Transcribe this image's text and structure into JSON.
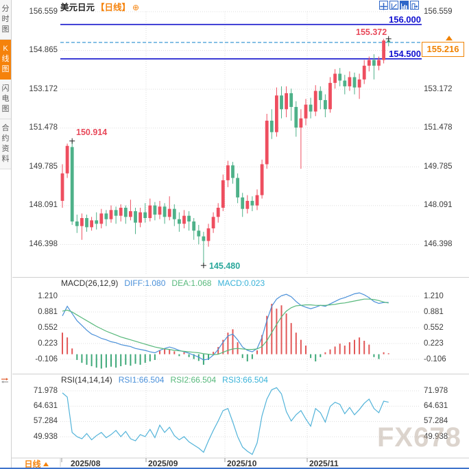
{
  "app": {
    "title": "美元日元",
    "period_tag": "【日线】",
    "footer_period": "日线",
    "watermark": "FX678"
  },
  "sidebar": {
    "tabs": [
      {
        "label": "分时图",
        "active": false
      },
      {
        "label": "K线图",
        "active": true
      },
      {
        "label": "闪电图",
        "active": false
      },
      {
        "label": "合约资料",
        "active": false
      }
    ]
  },
  "toolbar": {
    "icons": [
      "crosshair",
      "axis-scale",
      "indicator-chart",
      "exit"
    ]
  },
  "colors": {
    "up": "#ee4e5f",
    "down": "#4eb189",
    "hist_up": "#e25757",
    "hist_down": "#3da878",
    "diff": "#4a90d9",
    "dea": "#57b87b",
    "rsi_line": "#52b3d9",
    "hline": "#1212cc",
    "dashed": "#3d9ad6",
    "grid": "#dcdcdc",
    "separator": "#cfcfcf",
    "accent_orange": "#f5820b",
    "marker_red": "#e8495a",
    "marker_teal": "#2aa79b"
  },
  "chart_data": [
    {
      "type": "candlestick",
      "title": "美元日元 日线",
      "x_ticks": [
        "2025/08",
        "2025/09",
        "2025/10",
        "2025/11"
      ],
      "y_ticks": [
        156.559,
        154.865,
        153.172,
        151.478,
        149.785,
        148.091,
        146.398
      ],
      "ylim": [
        146.398,
        156.559
      ],
      "hlines": [
        {
          "value": 156.0,
          "label": "156.000"
        },
        {
          "value": 154.5,
          "label": "154.500"
        }
      ],
      "current_price": {
        "value": 155.216,
        "label": "155.216"
      },
      "markers": [
        {
          "label": "150.914",
          "value": 150.914,
          "candle": 2,
          "anchor": "high"
        },
        {
          "label": "145.480",
          "value": 145.48,
          "candle": 29,
          "anchor": "low"
        },
        {
          "label": "155.372",
          "value": 155.372,
          "candle": 67,
          "anchor": "high"
        }
      ],
      "candles_ohlc": [
        [
          148.3,
          149.9,
          148.0,
          149.5
        ],
        [
          149.5,
          150.8,
          149.3,
          150.7
        ],
        [
          150.65,
          150.914,
          147.25,
          147.4
        ],
        [
          147.4,
          147.7,
          146.9,
          147.2
        ],
        [
          147.2,
          147.75,
          146.6,
          147.55
        ],
        [
          147.55,
          147.7,
          146.95,
          147.15
        ],
        [
          147.15,
          147.6,
          147.0,
          147.45
        ],
        [
          147.45,
          147.8,
          147.05,
          147.3
        ],
        [
          147.3,
          147.95,
          147.1,
          147.75
        ],
        [
          147.75,
          147.9,
          147.2,
          147.5
        ],
        [
          147.5,
          148.1,
          147.35,
          147.9
        ],
        [
          147.9,
          148.05,
          147.3,
          147.65
        ],
        [
          147.65,
          148.15,
          147.4,
          148.0
        ],
        [
          148.0,
          148.1,
          147.3,
          147.6
        ],
        [
          147.6,
          148.35,
          147.45,
          147.85
        ],
        [
          147.85,
          148.0,
          146.85,
          147.35
        ],
        [
          147.35,
          148.0,
          147.15,
          147.8
        ],
        [
          147.8,
          148.2,
          147.35,
          147.55
        ],
        [
          147.55,
          148.4,
          147.4,
          148.1
        ],
        [
          148.1,
          148.25,
          147.45,
          147.7
        ],
        [
          147.7,
          148.3,
          147.5,
          148.05
        ],
        [
          148.05,
          148.2,
          147.3,
          147.6
        ],
        [
          147.6,
          148.5,
          147.45,
          147.95
        ],
        [
          147.95,
          148.15,
          147.2,
          147.5
        ],
        [
          147.5,
          147.8,
          146.95,
          147.3
        ],
        [
          147.3,
          147.9,
          147.1,
          147.65
        ],
        [
          147.65,
          147.85,
          147.0,
          147.4
        ],
        [
          147.4,
          147.55,
          146.6,
          147.0
        ],
        [
          147.0,
          147.25,
          146.4,
          146.75
        ],
        [
          146.75,
          146.95,
          145.48,
          146.55
        ],
        [
          146.55,
          147.3,
          146.3,
          147.1
        ],
        [
          147.1,
          147.8,
          146.9,
          147.6
        ],
        [
          147.6,
          148.2,
          147.35,
          148.0
        ],
        [
          148.0,
          149.45,
          147.85,
          149.2
        ],
        [
          149.2,
          150.05,
          148.9,
          149.85
        ],
        [
          149.85,
          150.0,
          149.05,
          149.3
        ],
        [
          149.3,
          149.5,
          148.2,
          148.45
        ],
        [
          148.45,
          148.65,
          147.6,
          147.95
        ],
        [
          147.95,
          148.55,
          147.75,
          148.3
        ],
        [
          148.3,
          148.5,
          147.85,
          148.1
        ],
        [
          148.1,
          148.8,
          147.9,
          148.55
        ],
        [
          148.55,
          150.1,
          148.4,
          149.9
        ],
        [
          149.9,
          152.1,
          149.7,
          151.8
        ],
        [
          151.8,
          152.3,
          151.0,
          151.3
        ],
        [
          151.3,
          153.25,
          151.1,
          152.9
        ],
        [
          152.9,
          153.3,
          151.9,
          152.3
        ],
        [
          152.3,
          153.3,
          151.95,
          153.0
        ],
        [
          153.0,
          153.2,
          151.8,
          152.4
        ],
        [
          152.4,
          152.65,
          151.1,
          151.5
        ],
        [
          151.5,
          152.3,
          149.7,
          151.9
        ],
        [
          151.9,
          152.75,
          151.6,
          152.5
        ],
        [
          152.5,
          152.8,
          151.9,
          152.2
        ],
        [
          152.2,
          153.35,
          152.0,
          153.1
        ],
        [
          153.1,
          153.3,
          152.3,
          152.7
        ],
        [
          152.7,
          152.95,
          151.95,
          152.3
        ],
        [
          152.3,
          153.7,
          152.15,
          153.45
        ],
        [
          153.45,
          154.05,
          153.2,
          153.85
        ],
        [
          153.85,
          154.1,
          153.3,
          153.55
        ],
        [
          153.55,
          153.8,
          152.95,
          153.3
        ],
        [
          153.3,
          153.95,
          153.1,
          153.7
        ],
        [
          153.7,
          153.9,
          152.95,
          153.25
        ],
        [
          153.25,
          153.85,
          152.75,
          153.6
        ],
        [
          153.6,
          154.45,
          153.4,
          154.2
        ],
        [
          154.2,
          154.6,
          153.95,
          154.45
        ],
        [
          154.45,
          154.7,
          153.6,
          154.2
        ],
        [
          154.2,
          154.6,
          154.0,
          154.45
        ],
        [
          154.45,
          155.372,
          154.3,
          155.3
        ],
        [
          155.3,
          155.372,
          155.05,
          155.216
        ]
      ]
    },
    {
      "type": "line",
      "params": "MACD(26,12,9)",
      "labels": {
        "diff": "DIFF:1.080",
        "dea": "DEA:1.068",
        "macd": "MACD:0.023"
      },
      "y_ticks": [
        1.21,
        0.881,
        0.552,
        0.223,
        -0.106
      ],
      "series": [
        {
          "name": "DIFF",
          "values": [
            0.8,
            1.0,
            0.85,
            0.7,
            0.6,
            0.5,
            0.42,
            0.38,
            0.33,
            0.3,
            0.26,
            0.24,
            0.2,
            0.18,
            0.16,
            0.12,
            0.1,
            0.08,
            0.05,
            0.03,
            0.08,
            0.12,
            0.15,
            0.12,
            0.08,
            0.05,
            0.02,
            -0.02,
            -0.06,
            -0.12,
            -0.1,
            -0.02,
            0.1,
            0.25,
            0.38,
            0.42,
            0.3,
            0.15,
            0.08,
            0.05,
            0.12,
            0.35,
            0.7,
            1.0,
            1.15,
            1.22,
            1.25,
            1.2,
            1.1,
            1.02,
            0.98,
            0.95,
            0.98,
            1.02,
            1.0,
            1.05,
            1.1,
            1.15,
            1.18,
            1.22,
            1.26,
            1.28,
            1.24,
            1.18,
            1.1,
            1.06,
            1.08,
            1.08
          ]
        },
        {
          "name": "DEA",
          "values": [
            0.9,
            0.92,
            0.88,
            0.82,
            0.76,
            0.7,
            0.64,
            0.58,
            0.53,
            0.48,
            0.44,
            0.4,
            0.36,
            0.33,
            0.3,
            0.27,
            0.24,
            0.21,
            0.18,
            0.15,
            0.13,
            0.11,
            0.1,
            0.08,
            0.07,
            0.06,
            0.05,
            0.04,
            0.03,
            0.01,
            0.0,
            -0.01,
            0.0,
            0.04,
            0.08,
            0.11,
            0.12,
            0.11,
            0.1,
            0.1,
            0.11,
            0.16,
            0.28,
            0.45,
            0.62,
            0.78,
            0.9,
            0.97,
            1.01,
            1.02,
            1.03,
            1.03,
            1.02,
            1.02,
            1.02,
            1.03,
            1.04,
            1.06,
            1.07,
            1.09,
            1.11,
            1.13,
            1.15,
            1.15,
            1.14,
            1.12,
            1.09,
            1.068
          ]
        },
        {
          "name": "MACD-hist",
          "values": [
            0.45,
            0.35,
            0.12,
            -0.12,
            -0.18,
            -0.22,
            -0.25,
            -0.28,
            -0.3,
            -0.28,
            -0.26,
            -0.28,
            -0.25,
            -0.22,
            -0.24,
            -0.2,
            -0.22,
            -0.18,
            -0.15,
            -0.12,
            0.08,
            0.12,
            0.1,
            0.06,
            -0.04,
            0.04,
            -0.06,
            -0.1,
            -0.14,
            -0.22,
            -0.12,
            0.05,
            0.15,
            0.3,
            0.45,
            0.52,
            0.25,
            -0.08,
            -0.15,
            -0.1,
            0.08,
            0.4,
            0.8,
            1.05,
            0.95,
            1.02,
            0.85,
            0.65,
            0.45,
            0.3,
            0.18,
            -0.08,
            -0.15,
            -0.06,
            0.04,
            0.1,
            0.16,
            0.22,
            0.18,
            0.25,
            0.3,
            0.35,
            0.28,
            0.2,
            -0.06,
            -0.1,
            0.04,
            0.02
          ]
        }
      ]
    },
    {
      "type": "line",
      "params": "RSI(14,14,14)",
      "labels": {
        "rsi1": "RSI1:66.504",
        "rsi2": "RSI2:66.504",
        "rsi3": "RSI3:66.504"
      },
      "y_ticks": [
        71.978,
        64.631,
        57.284,
        49.938
      ],
      "series": [
        {
          "name": "RSI",
          "values": [
            71.0,
            69.0,
            52.0,
            50.0,
            49.0,
            51.5,
            48.5,
            50.5,
            52.0,
            49.5,
            51.0,
            53.0,
            50.0,
            52.5,
            49.0,
            48.0,
            51.0,
            50.0,
            53.5,
            49.5,
            55.5,
            52.0,
            54.5,
            50.5,
            48.5,
            50.0,
            47.5,
            46.0,
            44.5,
            42.5,
            48.0,
            53.0,
            57.5,
            62.5,
            63.5,
            57.0,
            50.0,
            45.0,
            43.0,
            41.5,
            47.0,
            60.0,
            68.0,
            72.5,
            73.5,
            70.5,
            62.0,
            57.5,
            60.5,
            62.5,
            58.5,
            55.0,
            63.5,
            61.5,
            57.0,
            64.5,
            66.5,
            65.5,
            61.0,
            64.0,
            60.5,
            63.0,
            66.0,
            68.0,
            63.5,
            61.5,
            67.0,
            66.504
          ]
        }
      ]
    }
  ]
}
